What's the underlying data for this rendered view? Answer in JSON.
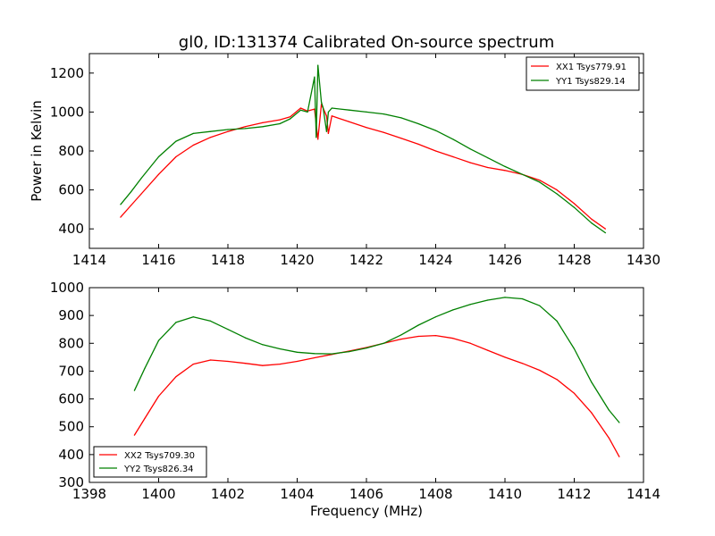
{
  "figure": {
    "title": "gl0, ID:131374 Calibrated On-source spectrum",
    "xlabel": "Frequency (MHz)",
    "ylabel": "Power in Kelvin"
  },
  "chart_data": [
    {
      "type": "line",
      "title": "gl0, ID:131374 Calibrated On-source spectrum",
      "xlabel": "",
      "ylabel": "Power in Kelvin",
      "xlim": [
        1414,
        1430
      ],
      "ylim": [
        300,
        1300
      ],
      "xticks": [
        1414,
        1416,
        1418,
        1420,
        1422,
        1424,
        1426,
        1428,
        1430
      ],
      "yticks": [
        400,
        600,
        800,
        1000,
        1200
      ],
      "grid": false,
      "legend_position": "top-right",
      "series": [
        {
          "name": "XX1 Tsys779.91",
          "color": "#ff0000",
          "x": [
            1414.9,
            1415.2,
            1415.5,
            1416.0,
            1416.5,
            1417.0,
            1417.5,
            1418.0,
            1418.5,
            1419.0,
            1419.5,
            1419.8,
            1420.1,
            1420.3,
            1420.5,
            1420.6,
            1420.7,
            1420.85,
            1420.9,
            1421.0,
            1421.5,
            1422.0,
            1422.5,
            1423.0,
            1423.5,
            1424.0,
            1424.5,
            1425.0,
            1425.5,
            1426.0,
            1426.5,
            1427.0,
            1427.5,
            1428.0,
            1428.5,
            1428.9
          ],
          "y": [
            460,
            520,
            580,
            680,
            770,
            830,
            870,
            900,
            925,
            945,
            960,
            975,
            1020,
            1005,
            1015,
            860,
            1040,
            980,
            890,
            980,
            950,
            920,
            895,
            865,
            835,
            800,
            770,
            740,
            715,
            700,
            680,
            650,
            600,
            530,
            450,
            400
          ]
        },
        {
          "name": "YY1 Tsys829.14",
          "color": "#008000",
          "x": [
            1414.9,
            1415.2,
            1415.5,
            1416.0,
            1416.5,
            1417.0,
            1417.5,
            1418.0,
            1418.5,
            1419.0,
            1419.5,
            1419.8,
            1420.1,
            1420.3,
            1420.5,
            1420.55,
            1420.6,
            1420.7,
            1420.75,
            1420.85,
            1420.9,
            1421.0,
            1421.5,
            1422.0,
            1422.5,
            1423.0,
            1423.5,
            1424.0,
            1424.5,
            1425.0,
            1425.5,
            1426.0,
            1426.5,
            1427.0,
            1427.5,
            1428.0,
            1428.5,
            1428.9
          ],
          "y": [
            525,
            590,
            660,
            770,
            850,
            890,
            900,
            910,
            915,
            925,
            940,
            965,
            1010,
            1000,
            1180,
            870,
            1240,
            1050,
            1020,
            900,
            1000,
            1020,
            1010,
            1000,
            990,
            970,
            940,
            905,
            860,
            810,
            765,
            720,
            680,
            640,
            580,
            510,
            430,
            380
          ]
        }
      ]
    },
    {
      "type": "line",
      "title": "",
      "xlabel": "Frequency (MHz)",
      "ylabel": "",
      "xlim": [
        1398,
        1414
      ],
      "ylim": [
        300,
        1000
      ],
      "xticks": [
        1398,
        1400,
        1402,
        1404,
        1406,
        1408,
        1410,
        1412,
        1414
      ],
      "yticks": [
        300,
        400,
        500,
        600,
        700,
        800,
        900,
        1000
      ],
      "grid": false,
      "legend_position": "bottom-left",
      "series": [
        {
          "name": "XX2 Tsys709.30",
          "color": "#ff0000",
          "x": [
            1399.3,
            1399.6,
            1400.0,
            1400.5,
            1401.0,
            1401.5,
            1402.0,
            1402.5,
            1403.0,
            1403.5,
            1404.0,
            1404.5,
            1405.0,
            1405.5,
            1406.0,
            1406.5,
            1407.0,
            1407.5,
            1408.0,
            1408.5,
            1409.0,
            1409.5,
            1410.0,
            1410.5,
            1411.0,
            1411.5,
            1412.0,
            1412.5,
            1413.0,
            1413.3
          ],
          "y": [
            470,
            530,
            610,
            680,
            725,
            740,
            735,
            728,
            720,
            725,
            735,
            748,
            760,
            772,
            785,
            800,
            815,
            825,
            828,
            818,
            800,
            775,
            750,
            728,
            703,
            670,
            620,
            550,
            460,
            392
          ]
        },
        {
          "name": "YY2 Tsys826.34",
          "color": "#008000",
          "x": [
            1399.3,
            1399.6,
            1400.0,
            1400.5,
            1401.0,
            1401.5,
            1402.0,
            1402.5,
            1403.0,
            1403.5,
            1404.0,
            1404.5,
            1405.0,
            1405.5,
            1406.0,
            1406.5,
            1407.0,
            1407.5,
            1408.0,
            1408.5,
            1409.0,
            1409.5,
            1410.0,
            1410.5,
            1411.0,
            1411.5,
            1412.0,
            1412.5,
            1413.0,
            1413.3
          ],
          "y": [
            630,
            710,
            810,
            875,
            895,
            880,
            850,
            820,
            795,
            780,
            768,
            763,
            762,
            770,
            783,
            800,
            830,
            865,
            895,
            920,
            940,
            955,
            965,
            960,
            935,
            880,
            780,
            660,
            560,
            515
          ]
        }
      ]
    }
  ]
}
